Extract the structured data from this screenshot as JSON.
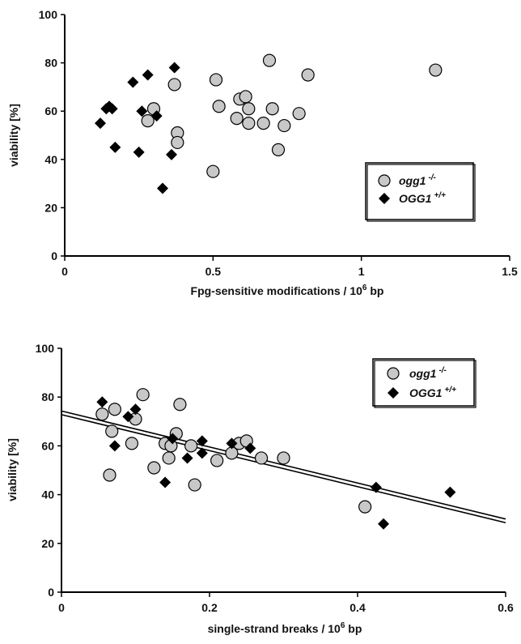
{
  "chart_data": [
    {
      "type": "scatter",
      "xlabel": "Fpg-sensitive modifications / 10",
      "xlabel_sup": "6",
      "xlabel_suffix": " bp",
      "ylabel": "viability [%]",
      "xlim": [
        0,
        1.5
      ],
      "ylim": [
        0,
        100
      ],
      "xticks": [
        "0",
        "0.5",
        "1",
        "1.5"
      ],
      "yticks": [
        "0",
        "20",
        "40",
        "60",
        "80",
        "100"
      ],
      "legend_position": "right",
      "series": [
        {
          "name": "ogg1",
          "name_sup": "-/-",
          "marker": "circle",
          "color": "#c8c8c8",
          "points": [
            [
              0.28,
              56
            ],
            [
              0.3,
              61
            ],
            [
              0.37,
              71
            ],
            [
              0.38,
              51
            ],
            [
              0.38,
              47
            ],
            [
              0.5,
              35
            ],
            [
              0.51,
              73
            ],
            [
              0.52,
              62
            ],
            [
              0.58,
              57
            ],
            [
              0.59,
              65
            ],
            [
              0.61,
              66
            ],
            [
              0.62,
              61
            ],
            [
              0.62,
              55
            ],
            [
              0.67,
              55
            ],
            [
              0.69,
              81
            ],
            [
              0.7,
              61
            ],
            [
              0.72,
              44
            ],
            [
              0.74,
              54
            ],
            [
              0.79,
              59
            ],
            [
              0.82,
              75
            ],
            [
              1.25,
              77
            ]
          ]
        },
        {
          "name": "OGG1",
          "name_sup": "+/+",
          "marker": "diamond",
          "color": "#000000",
          "points": [
            [
              0.12,
              55
            ],
            [
              0.14,
              61
            ],
            [
              0.15,
              62
            ],
            [
              0.16,
              61
            ],
            [
              0.17,
              45
            ],
            [
              0.23,
              72
            ],
            [
              0.25,
              43
            ],
            [
              0.26,
              60
            ],
            [
              0.28,
              75
            ],
            [
              0.31,
              58
            ],
            [
              0.33,
              28
            ],
            [
              0.36,
              42
            ],
            [
              0.37,
              78
            ]
          ]
        }
      ]
    },
    {
      "type": "scatter",
      "xlabel": "single-strand breaks / 10",
      "xlabel_sup": "6",
      "xlabel_suffix": " bp",
      "ylabel": "viability [%]",
      "xlim": [
        0,
        0.6
      ],
      "ylim": [
        0,
        100
      ],
      "xticks": [
        "0",
        "0.2",
        "0.4",
        "0.6"
      ],
      "yticks": [
        "0",
        "20",
        "40",
        "60",
        "80",
        "100"
      ],
      "legend_position": "top-right",
      "series": [
        {
          "name": "ogg1",
          "name_sup": "-/-",
          "marker": "circle",
          "color": "#c8c8c8",
          "points": [
            [
              0.055,
              73
            ],
            [
              0.065,
              48
            ],
            [
              0.068,
              66
            ],
            [
              0.072,
              75
            ],
            [
              0.095,
              61
            ],
            [
              0.1,
              71
            ],
            [
              0.11,
              81
            ],
            [
              0.125,
              51
            ],
            [
              0.14,
              61
            ],
            [
              0.145,
              55
            ],
            [
              0.148,
              60
            ],
            [
              0.155,
              65
            ],
            [
              0.16,
              77
            ],
            [
              0.175,
              60
            ],
            [
              0.18,
              44
            ],
            [
              0.21,
              54
            ],
            [
              0.23,
              57
            ],
            [
              0.24,
              61
            ],
            [
              0.25,
              62
            ],
            [
              0.27,
              55
            ],
            [
              0.3,
              55
            ],
            [
              0.41,
              35
            ]
          ]
        },
        {
          "name": "OGG1",
          "name_sup": "+/+",
          "marker": "diamond",
          "color": "#000000",
          "points": [
            [
              0.055,
              78
            ],
            [
              0.072,
              60
            ],
            [
              0.09,
              72
            ],
            [
              0.1,
              75
            ],
            [
              0.14,
              45
            ],
            [
              0.15,
              63
            ],
            [
              0.17,
              55
            ],
            [
              0.19,
              62
            ],
            [
              0.19,
              57
            ],
            [
              0.23,
              61
            ],
            [
              0.255,
              59
            ],
            [
              0.425,
              43
            ],
            [
              0.435,
              28
            ],
            [
              0.525,
              41
            ]
          ]
        }
      ],
      "trend_lines": [
        {
          "series": "ogg1",
          "x": [
            0,
            0.6
          ],
          "y": [
            74.3,
            30
          ]
        },
        {
          "series": "OGG1",
          "x": [
            0,
            0.6
          ],
          "y": [
            72.8,
            28.5
          ]
        }
      ]
    }
  ]
}
